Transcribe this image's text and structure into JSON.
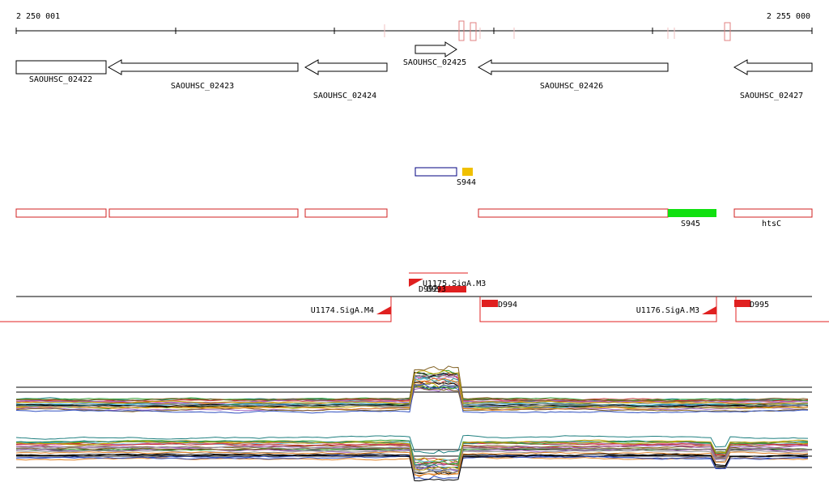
{
  "ruler": {
    "start": "2 250 001",
    "end": "2 255 000"
  },
  "genes": [
    {
      "label": "SAOUHSC_02422"
    },
    {
      "label": "SAOUHSC_02423"
    },
    {
      "label": "SAOUHSC_02424"
    },
    {
      "label": "SAOUHSC_02425"
    },
    {
      "label": "SAOUHSC_02426"
    },
    {
      "label": "SAOUHSC_02427"
    }
  ],
  "features": [
    {
      "label": "S944"
    },
    {
      "label": "S945"
    },
    {
      "label": "htsC"
    }
  ],
  "promoters": [
    {
      "label": "U1174.SigA.M4"
    },
    {
      "label": "U1175.SigA.M3"
    },
    {
      "label": "U1176.SigA.M3"
    }
  ],
  "terminators": [
    {
      "label": "D992"
    },
    {
      "label": "D993"
    },
    {
      "label": "D994"
    },
    {
      "label": "D995"
    }
  ]
}
